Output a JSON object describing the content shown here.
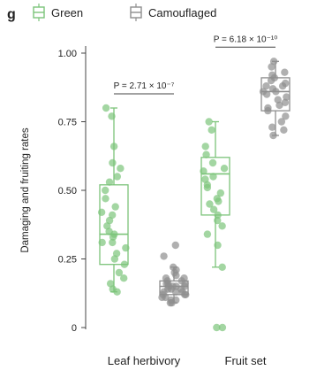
{
  "panel_label": "g",
  "colors": {
    "green": "#7cc47a",
    "gray": "#8f8f8f",
    "axis": "#444444",
    "text": "#222222"
  },
  "chart_data": {
    "type": "box",
    "ylabel": "Damaging and fruiting rates",
    "ylim": [
      0,
      1
    ],
    "yticks": [
      0,
      0.25,
      0.5,
      0.75,
      1.0
    ],
    "ytick_labels": [
      "0",
      "0.25",
      "0.50",
      "0.75",
      "1.00"
    ],
    "categories": [
      "Leaf herbivory",
      "Fruit set"
    ],
    "legend": {
      "placement": "top",
      "entries": [
        "Green",
        "Camouflaged"
      ]
    },
    "series": [
      {
        "name": "Green",
        "color": "#7cc47a",
        "boxes": [
          {
            "category": "Leaf herbivory",
            "whisker_low": 0.13,
            "q1": 0.23,
            "median": 0.34,
            "q3": 0.52,
            "whisker_high": 0.8,
            "points": [
              0.8,
              0.77,
              0.66,
              0.6,
              0.58,
              0.55,
              0.53,
              0.5,
              0.47,
              0.44,
              0.42,
              0.41,
              0.39,
              0.37,
              0.35,
              0.34,
              0.33,
              0.31,
              0.29,
              0.27,
              0.25,
              0.23,
              0.2,
              0.18,
              0.16,
              0.14,
              0.13,
              0.31
            ]
          },
          {
            "category": "Fruit set",
            "whisker_low": 0.22,
            "q1": 0.41,
            "median": 0.56,
            "q3": 0.62,
            "whisker_high": 0.75,
            "points": [
              0.75,
              0.72,
              0.66,
              0.63,
              0.6,
              0.58,
              0.57,
              0.55,
              0.54,
              0.52,
              0.51,
              0.49,
              0.47,
              0.45,
              0.43,
              0.41,
              0.39,
              0.37,
              0.34,
              0.3,
              0.22,
              0.0,
              0.0,
              0.46
            ]
          }
        ]
      },
      {
        "name": "Camouflaged",
        "color": "#8f8f8f",
        "boxes": [
          {
            "category": "Leaf herbivory",
            "whisker_low": 0.09,
            "q1": 0.12,
            "median": 0.15,
            "q3": 0.17,
            "whisker_high": 0.22,
            "points": [
              0.3,
              0.26,
              0.22,
              0.21,
              0.2,
              0.19,
              0.18,
              0.18,
              0.17,
              0.17,
              0.16,
              0.16,
              0.15,
              0.15,
              0.15,
              0.14,
              0.14,
              0.13,
              0.13,
              0.13,
              0.12,
              0.12,
              0.11,
              0.11,
              0.1,
              0.1,
              0.09,
              0.09,
              0.15,
              0.14,
              0.16,
              0.12
            ]
          },
          {
            "category": "Fruit set",
            "whisker_low": 0.7,
            "q1": 0.79,
            "median": 0.86,
            "q3": 0.91,
            "whisker_high": 0.97,
            "points": [
              0.97,
              0.95,
              0.93,
              0.92,
              0.91,
              0.9,
              0.89,
              0.88,
              0.87,
              0.86,
              0.85,
              0.84,
              0.83,
              0.82,
              0.81,
              0.8,
              0.79,
              0.77,
              0.75,
              0.73,
              0.72,
              0.7,
              0.86,
              0.88
            ]
          }
        ]
      }
    ],
    "annotations": [
      {
        "text": "P = 2.71 × 10⁻⁷",
        "category": "Leaf herbivory"
      },
      {
        "text": "P = 6.18 × 10⁻¹⁰",
        "category": "Fruit set"
      }
    ]
  }
}
